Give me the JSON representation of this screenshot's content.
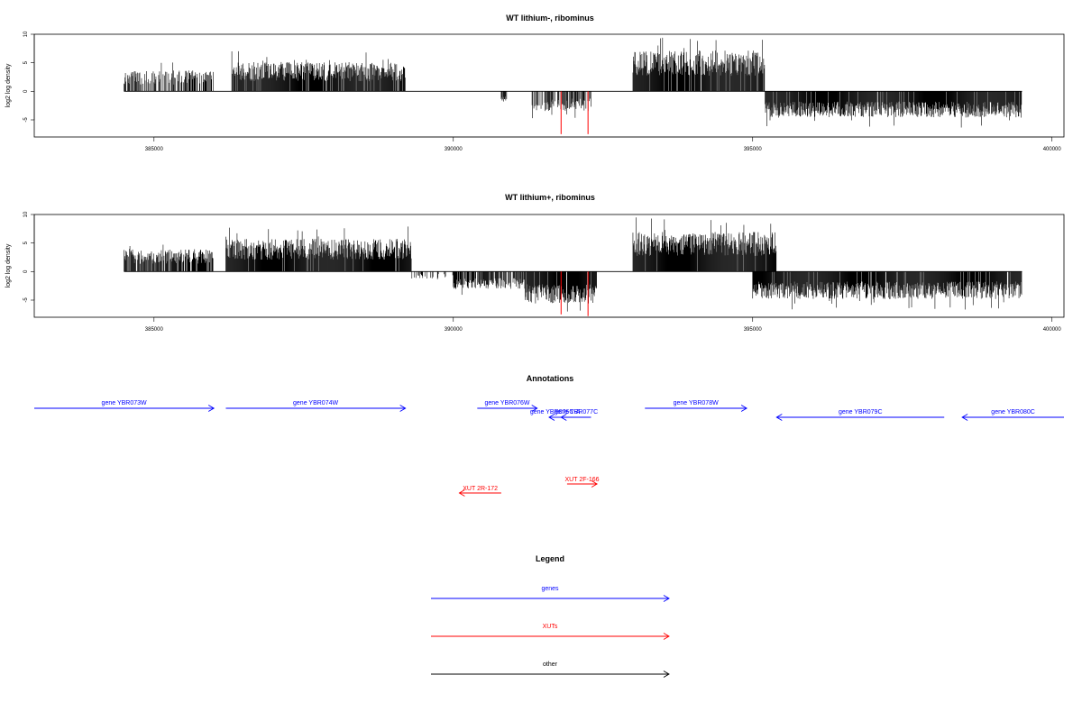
{
  "colors": {
    "gene": "#0000ff",
    "xut": "#ff0000",
    "other": "#000000",
    "bar": "#000000",
    "highlight": "#ff0000"
  },
  "chart_data": [
    {
      "type": "bar",
      "title": "WT lithium-, ribominus",
      "ylabel": "log2 log density",
      "xlim": [
        383000,
        400200
      ],
      "ylim": [
        -8,
        10
      ],
      "xticks": [
        385000,
        390000,
        395000,
        400000
      ],
      "xtick_labels": [
        "385000",
        "390000",
        "395000",
        "400000"
      ],
      "yticks": [
        10,
        5,
        0,
        -5
      ],
      "ytick_labels": [
        "10",
        "5",
        "0",
        "-5"
      ],
      "segments": [
        {
          "x0": 384500,
          "x1": 386000,
          "sign": 1,
          "base": 1.8,
          "amp": 1.8,
          "density": 0.55
        },
        {
          "x0": 386300,
          "x1": 389200,
          "sign": 1,
          "base": 2.6,
          "amp": 2.4,
          "density": 0.9
        },
        {
          "x0": 390800,
          "x1": 390900,
          "sign": -1,
          "base": 1.0,
          "amp": 0.8,
          "density": 0.8
        },
        {
          "x0": 391300,
          "x1": 392300,
          "sign": -1,
          "base": 1.8,
          "amp": 1.6,
          "density": 0.6
        },
        {
          "x0": 393000,
          "x1": 395200,
          "sign": 1,
          "base": 3.8,
          "amp": 3.2,
          "density": 0.95
        },
        {
          "x0": 395200,
          "x1": 399500,
          "sign": -1,
          "base": 2.5,
          "amp": 2.0,
          "density": 0.95
        }
      ],
      "highlights": [
        {
          "x": 391800,
          "value": -7.5
        },
        {
          "x": 392250,
          "value": -7.5
        }
      ]
    },
    {
      "type": "bar",
      "title": "WT lithium+, ribominus",
      "ylabel": "log2 log density",
      "xlim": [
        383000,
        400200
      ],
      "ylim": [
        -8,
        10
      ],
      "xticks": [
        385000,
        390000,
        395000,
        400000
      ],
      "xtick_labels": [
        "385000",
        "390000",
        "395000",
        "400000"
      ],
      "yticks": [
        10,
        5,
        0,
        -5
      ],
      "ytick_labels": [
        "10",
        "5",
        "0",
        "-5"
      ],
      "segments": [
        {
          "x0": 384500,
          "x1": 386000,
          "sign": 1,
          "base": 2.0,
          "amp": 1.8,
          "density": 0.8
        },
        {
          "x0": 386200,
          "x1": 389300,
          "sign": 1,
          "base": 3.0,
          "amp": 2.6,
          "density": 0.95
        },
        {
          "x0": 389300,
          "x1": 390000,
          "sign": -1,
          "base": 0.6,
          "amp": 0.6,
          "density": 0.3
        },
        {
          "x0": 390000,
          "x1": 391200,
          "sign": -1,
          "base": 1.6,
          "amp": 1.4,
          "density": 0.8
        },
        {
          "x0": 391200,
          "x1": 392400,
          "sign": -1,
          "base": 3.0,
          "amp": 2.6,
          "density": 0.95
        },
        {
          "x0": 393000,
          "x1": 395400,
          "sign": 1,
          "base": 3.8,
          "amp": 3.0,
          "density": 0.97
        },
        {
          "x0": 395000,
          "x1": 399500,
          "sign": -1,
          "base": 2.5,
          "amp": 2.2,
          "density": 0.95
        }
      ],
      "highlights": [
        {
          "x": 391800,
          "value": -7.5
        },
        {
          "x": 392250,
          "value": -7.8
        }
      ]
    }
  ],
  "annotations": {
    "title": "Annotations",
    "genes": [
      {
        "label": "gene YBR073W",
        "start": 383000,
        "end": 386000,
        "strand": "+",
        "row": 0
      },
      {
        "label": "gene YBR074W",
        "start": 386200,
        "end": 389200,
        "strand": "+",
        "row": 0
      },
      {
        "label": "gene YBR076W",
        "start": 390400,
        "end": 391400,
        "strand": "+",
        "row": 0
      },
      {
        "label": "gene YBR076C-A",
        "start": 391600,
        "end": 391800,
        "strand": "-",
        "row": 1
      },
      {
        "label": "gene YBR077C",
        "start": 391800,
        "end": 392300,
        "strand": "-",
        "row": 1
      },
      {
        "label": "gene YBR078W",
        "start": 393200,
        "end": 394900,
        "strand": "+",
        "row": 0
      },
      {
        "label": "gene YBR079C",
        "start": 395400,
        "end": 398200,
        "strand": "-",
        "row": 1
      },
      {
        "label": "gene YBR080C",
        "start": 398500,
        "end": 400200,
        "strand": "-",
        "row": 1
      }
    ],
    "xuts": [
      {
        "label": "XUT 2R-172",
        "start": 390100,
        "end": 390800,
        "strand": "-",
        "row": 0
      },
      {
        "label": "XUT 2F-166",
        "start": 391900,
        "end": 392400,
        "strand": "+",
        "row": 1
      }
    ]
  },
  "legend": {
    "title": "Legend",
    "items": [
      {
        "label": "genes",
        "color": "#0000ff"
      },
      {
        "label": "XUTs",
        "color": "#ff0000"
      },
      {
        "label": "other",
        "color": "#000000"
      }
    ]
  }
}
